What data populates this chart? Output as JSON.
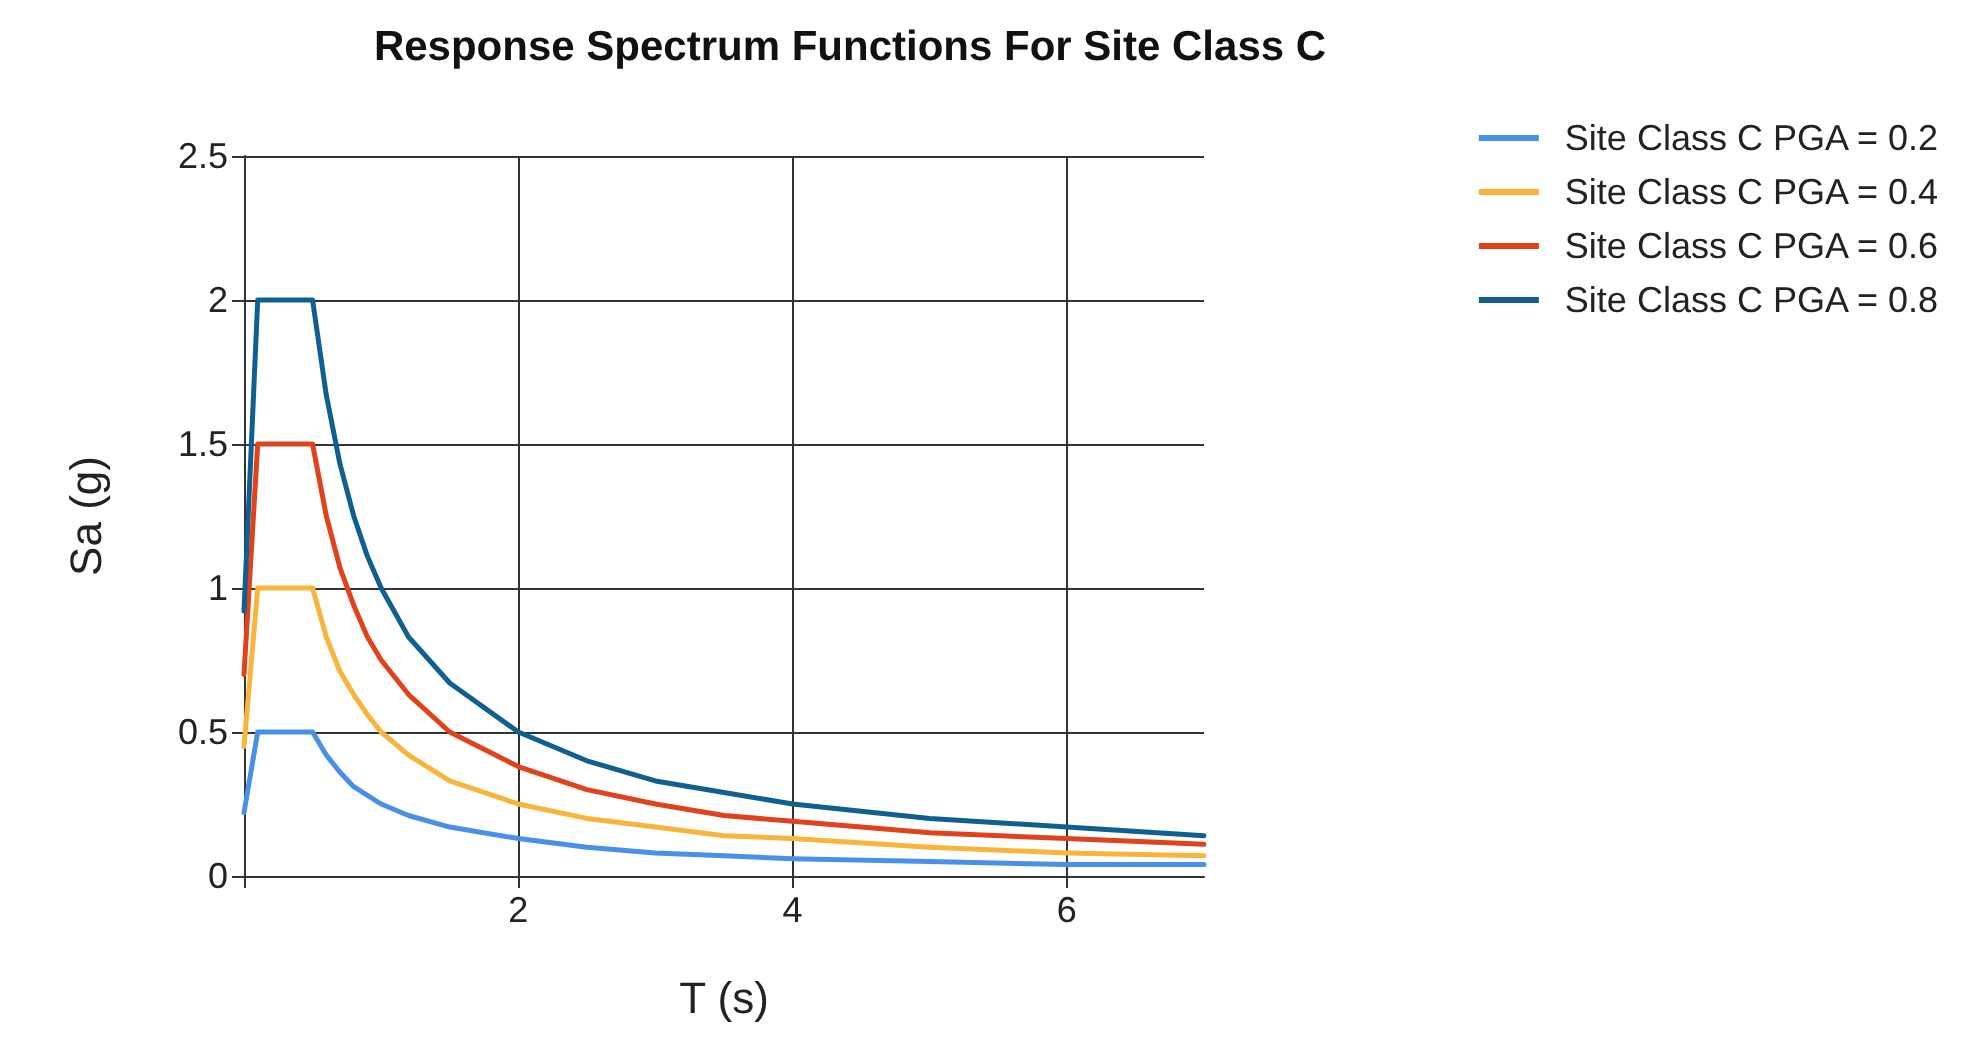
{
  "chart_data": {
    "type": "line",
    "title": "Response Spectrum Functions For Site Class C",
    "xlabel": "T (s)",
    "ylabel": "Sa (g)",
    "x": [
      0,
      0.1,
      0.5,
      0.6,
      0.7,
      0.8,
      0.9,
      1,
      1.2,
      1.5,
      2,
      2.5,
      3,
      3.5,
      4,
      5,
      6,
      7
    ],
    "series": [
      {
        "name": "Site Class C PGA = 0.2",
        "color": "#4a90e8",
        "values": [
          0.22,
          0.5,
          0.5,
          0.42,
          0.36,
          0.31,
          0.28,
          0.25,
          0.21,
          0.17,
          0.13,
          0.1,
          0.08,
          0.07,
          0.06,
          0.05,
          0.04,
          0.04
        ]
      },
      {
        "name": "Site Class C PGA = 0.4",
        "color": "#f9b43c",
        "values": [
          0.45,
          1,
          1,
          0.83,
          0.71,
          0.63,
          0.56,
          0.5,
          0.42,
          0.33,
          0.25,
          0.2,
          0.17,
          0.14,
          0.13,
          0.1,
          0.08,
          0.07
        ]
      },
      {
        "name": "Site Class C PGA = 0.6",
        "color": "#e0421b",
        "values": [
          0.7,
          1.5,
          1.5,
          1.25,
          1.07,
          0.94,
          0.83,
          0.75,
          0.63,
          0.5,
          0.38,
          0.3,
          0.25,
          0.21,
          0.19,
          0.15,
          0.13,
          0.11
        ]
      },
      {
        "name": "Site Class C PGA = 0.8",
        "color": "#0f6090",
        "values": [
          0.92,
          2,
          2,
          1.67,
          1.43,
          1.25,
          1.11,
          1,
          0.83,
          0.67,
          0.5,
          0.4,
          0.33,
          0.29,
          0.25,
          0.2,
          0.17,
          0.14
        ]
      }
    ],
    "xlim": [
      0,
      7
    ],
    "xticks": [
      {
        "value": 0,
        "label": null
      },
      2,
      4,
      6
    ],
    "ylim": [
      0,
      2.5
    ],
    "yticks": [
      0,
      0.5,
      1,
      1.5,
      2,
      2.5
    ],
    "grid": true,
    "legend": "top right",
    "marker": "none",
    "line_style": "solid"
  }
}
